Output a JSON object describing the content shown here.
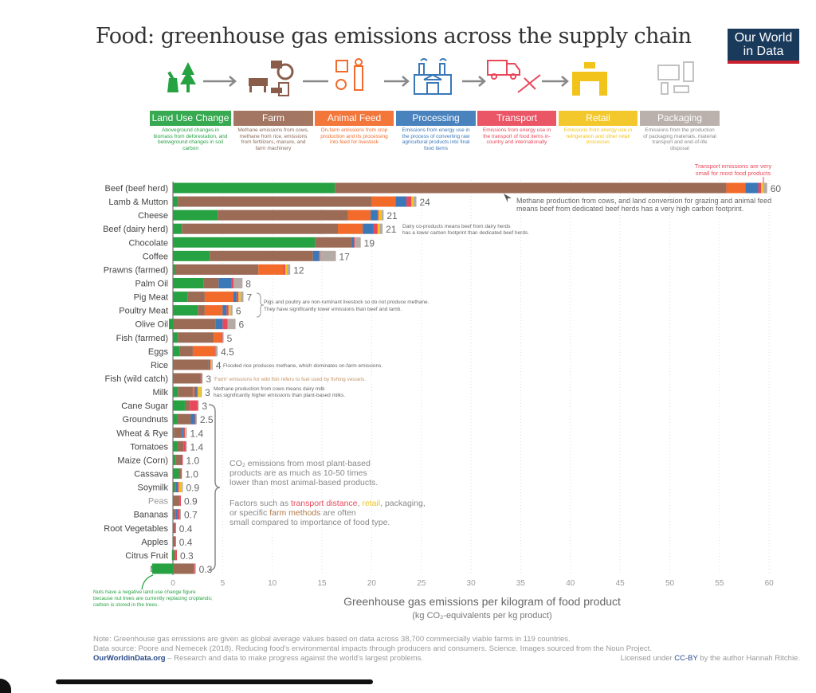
{
  "title": "Food: greenhouse gas emissions across the supply chain",
  "logo": {
    "line1": "Our World",
    "line2": "in Data"
  },
  "stages": [
    {
      "label": "Land Use Change",
      "color": "#27a243",
      "desc": "Aboveground changes in biomass from deforestation, and belowground changes in soil carbon",
      "icon": "tree-stump-icon"
    },
    {
      "label": "Farm",
      "color": "#9c6b56",
      "desc": "Methane emissions from cows, methane from rice, emissions from fertilizers, manure, and farm machinery",
      "icon": "farm-animals-tractor-icon"
    },
    {
      "label": "Animal Feed",
      "color": "#f26b2b",
      "desc": "On-farm emissions from crop production and its processing into feed for livestock",
      "icon": "farmer-chicken-icon"
    },
    {
      "label": "Processing",
      "color": "#3a78b8",
      "desc": "Emissions from energy use in the process of converting raw agricultural products into final food items",
      "icon": "factory-icon"
    },
    {
      "label": "Transport",
      "color": "#e9485a",
      "desc": "Emissions from energy use in the transport of food items in-country and internationally",
      "icon": "truck-plane-icon"
    },
    {
      "label": "Retail",
      "color": "#f2c41b",
      "desc": "Emissions from energy use in refrigeration and other retail processes",
      "icon": "shop-cart-icon"
    },
    {
      "label": "Packaging",
      "color": "#b5aaa6",
      "desc": "Emissions from the production of packaging materials, material transport and end-of-life disposal",
      "icon": "packaging-icon"
    }
  ],
  "chart_data": {
    "type": "bar",
    "orientation": "horizontal-stacked",
    "xlabel": "Greenhouse gas emissions per kilogram of food product",
    "xlabel_sub": "(kg CO₂-equivalents per kg product)",
    "xlim": [
      0,
      60
    ],
    "xticks": [
      0,
      5,
      10,
      15,
      20,
      25,
      30,
      35,
      40,
      45,
      50,
      55,
      60
    ],
    "grid": true,
    "series_names": [
      "Land Use Change",
      "Farm",
      "Animal Feed",
      "Processing",
      "Transport",
      "Retail",
      "Packaging"
    ],
    "categories": [
      "Beef (beef herd)",
      "Lamb & Mutton",
      "Cheese",
      "Beef (dairy herd)",
      "Chocolate",
      "Coffee",
      "Prawns (farmed)",
      "Palm Oil",
      "Pig Meat",
      "Poultry Meat",
      "Olive Oil",
      "Fish (farmed)",
      "Eggs",
      "Rice",
      "Fish (wild catch)",
      "Milk",
      "Cane Sugar",
      "Groundnuts",
      "Wheat & Rye",
      "Tomatoes",
      "Maize (Corn)",
      "Cassava",
      "Soymilk",
      "Peas",
      "Bananas",
      "Root Vegetables",
      "Apples",
      "Citrus Fruit",
      "Nuts"
    ],
    "totals_labels": [
      "60",
      "24",
      "21",
      "21",
      "19",
      "17",
      "12",
      "8",
      "7",
      "6",
      "6",
      "5",
      "4.5",
      "4",
      "3",
      "3",
      "3",
      "2.5",
      "1.4",
      "1.4",
      "1.0",
      "1.0",
      "0.9",
      "0.9",
      "0.7",
      "0.4",
      "0.4",
      "0.3",
      "0.3"
    ],
    "values": [
      [
        16.3,
        39.4,
        1.9,
        1.3,
        0.3,
        0.2,
        0.4
      ],
      [
        0.5,
        19.5,
        2.4,
        1.1,
        0.5,
        0.2,
        0.3
      ],
      [
        4.5,
        13.1,
        2.3,
        0.7,
        0.1,
        0.3,
        0.2
      ],
      [
        0.9,
        15.7,
        2.5,
        1.1,
        0.4,
        0.2,
        0.3
      ],
      [
        14.3,
        3.7,
        0,
        0.2,
        0.1,
        0,
        0.6
      ],
      [
        3.7,
        10.4,
        0,
        0.6,
        0.1,
        0,
        1.6
      ],
      [
        0.2,
        8.4,
        2.5,
        0,
        0.2,
        0.2,
        0.3
      ],
      [
        3.1,
        1.5,
        0,
        1.3,
        0.2,
        0,
        0.9
      ],
      [
        1.5,
        1.7,
        2.9,
        0.3,
        0.2,
        0.2,
        0.3
      ],
      [
        2.5,
        0.7,
        1.8,
        0.4,
        0.2,
        0.2,
        0.2
      ],
      [
        -0.4,
        4.3,
        0,
        0.7,
        0.5,
        0,
        0.8
      ],
      [
        0.5,
        3.6,
        0.8,
        0,
        0.1,
        0,
        0.1
      ],
      [
        0.7,
        1.3,
        2.2,
        0,
        0.1,
        0,
        0.2
      ],
      [
        0,
        3.6,
        0,
        0.1,
        0.1,
        0.1,
        0.1
      ],
      [
        0,
        2.8,
        0,
        0,
        0.1,
        0,
        0.1
      ],
      [
        0.5,
        1.5,
        0.2,
        0.2,
        0.1,
        0.3,
        0.1
      ],
      [
        1.2,
        0.5,
        0,
        0,
        0.8,
        0,
        0.1
      ],
      [
        0.4,
        1.4,
        0,
        0.4,
        0.1,
        0,
        0.1
      ],
      [
        0.1,
        0.8,
        0,
        0.2,
        0.1,
        0.1,
        0.1
      ],
      [
        0.4,
        0.7,
        0,
        0,
        0.2,
        0,
        0.1
      ],
      [
        0.3,
        0.5,
        0,
        0.1,
        0.1,
        0,
        0
      ],
      [
        0.6,
        0.2,
        0,
        0,
        0.1,
        0,
        0
      ],
      [
        0.2,
        0.1,
        0,
        0.2,
        0.1,
        0.3,
        0.1
      ],
      [
        0,
        0.7,
        0,
        0,
        0.1,
        0,
        0
      ],
      [
        0,
        0.3,
        0,
        0.1,
        0.3,
        0,
        0.1
      ],
      [
        0,
        0.2,
        0,
        0,
        0.1,
        0,
        0
      ],
      [
        0,
        0.2,
        0,
        0,
        0.1,
        0,
        0
      ],
      [
        -0.1,
        0.3,
        0,
        0,
        0.1,
        0,
        0
      ],
      [
        -2.1,
        2.1,
        0,
        0,
        0.1,
        0,
        0.1
      ]
    ],
    "annotations": {
      "transport": [
        "Transport emissions are very",
        "small for most food products"
      ],
      "beef": [
        "Methane production from cows, and land conversion for grazing and animal feed",
        "means beef from dedicated beef herds has a very high carbon footprint."
      ],
      "dairy_beef": [
        "Dairy co-products means beef from dairy herds",
        "has a lower carbon footprint than dedicated beef herds."
      ],
      "pig_poultry": [
        "Pigs and poultry are non-ruminant livestock so do not produce methane.",
        "They have significantly lower emissions than beef and lamb."
      ],
      "rice": "Flooded rice produces methane, which dominates on-farm emissions.",
      "wild_fish": "'Farm' emissions for wild fish refers to fuel used by fishing vessels.",
      "milk": [
        "Methane production from cows means dairy milk",
        "has significantly higher emissions than plant-based milks."
      ],
      "plants": [
        "CO₂ emissions from most plant-based",
        "products are as much as 10-50 times",
        "lower than most animal-based products."
      ],
      "factors": {
        "prefix": "Factors such as ",
        "w1": "transport distance",
        "s1": ", ",
        "w2": "retail",
        "s2": ", packaging,",
        "line2a": "or specific ",
        "w3": "farm methods",
        "line2b": " are often",
        "line3": "small compared to importance of food type."
      },
      "nuts": [
        "Nuts have a negative land use change figure",
        "because nut trees are currently replacing croplands;",
        "carbon is stored in the trees."
      ]
    }
  },
  "footer": {
    "note": "Note: Greenhouse gas emissions are given as global average values based on data across 38,700 commercially viable farms in 119 countries.",
    "source": "Data source: Poore and Nemecek (2018). Reducing food's environmental impacts through producers and consumers. Science. Images sourced from the Noun Project.",
    "site": "OurWorldinData.org",
    "tagline": " – Research and data to make progress against the world's largest problems.",
    "license_pre": "Licensed under ",
    "license": "CC-BY",
    "license_post": " by the author Hannah Ritchie."
  }
}
